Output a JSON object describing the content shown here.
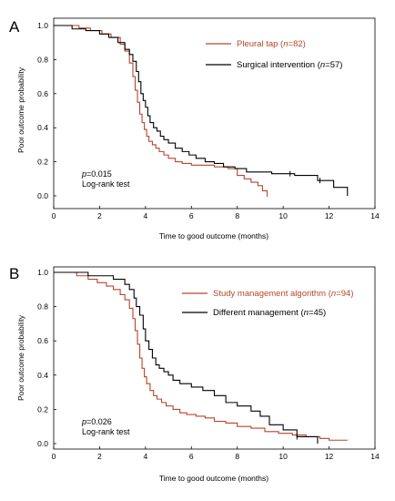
{
  "chart_data": [
    {
      "panel": "A",
      "type": "line",
      "step": true,
      "xlabel": "Time to good outcome (months)",
      "ylabel": "Poor outcome probability",
      "xlim": [
        0,
        14
      ],
      "ylim": [
        0,
        1
      ],
      "xticks": [
        "0",
        "2",
        "4",
        "6",
        "8",
        "10",
        "12",
        "14"
      ],
      "yticks": [
        "0.0",
        "0.2",
        "0.4",
        "0.6",
        "0.8",
        "1.0"
      ],
      "grid": false,
      "legend_position": "top-right",
      "stat_p": "0.015",
      "stat_test": "Log-rank test",
      "series": [
        {
          "label_main": "Pleural tap (",
          "label_n": "=82)",
          "color": "#b5462a",
          "x": [
            0,
            1.1,
            1.6,
            2.1,
            2.5,
            2.9,
            3.1,
            3.3,
            3.45,
            3.55,
            3.65,
            3.75,
            3.85,
            3.95,
            4.05,
            4.15,
            4.3,
            4.45,
            4.6,
            4.8,
            5.0,
            5.3,
            5.6,
            6.0,
            6.5,
            7.0,
            7.6,
            8.0,
            8.3,
            8.6,
            8.9,
            9.1,
            9.3
          ],
          "y": [
            1.0,
            0.985,
            0.97,
            0.95,
            0.93,
            0.89,
            0.85,
            0.78,
            0.7,
            0.62,
            0.55,
            0.48,
            0.43,
            0.39,
            0.35,
            0.32,
            0.3,
            0.28,
            0.26,
            0.24,
            0.22,
            0.2,
            0.19,
            0.18,
            0.18,
            0.17,
            0.16,
            0.12,
            0.1,
            0.08,
            0.06,
            0.03,
            0.01
          ],
          "censored_x": [
            9.3
          ]
        },
        {
          "label_main": "Surgical intervention (",
          "label_n": "=57)",
          "color": "#000000",
          "x": [
            0,
            0.8,
            1.4,
            2.0,
            2.4,
            2.8,
            3.1,
            3.3,
            3.45,
            3.6,
            3.7,
            3.8,
            3.9,
            4.0,
            4.1,
            4.2,
            4.35,
            4.5,
            4.65,
            4.8,
            5.0,
            5.3,
            5.6,
            5.9,
            6.2,
            6.6,
            7.0,
            7.4,
            7.9,
            8.4,
            9.5,
            10.5,
            11.5,
            12.2,
            12.8
          ],
          "y": [
            1.0,
            0.98,
            0.97,
            0.95,
            0.93,
            0.9,
            0.86,
            0.83,
            0.79,
            0.73,
            0.67,
            0.6,
            0.56,
            0.52,
            0.47,
            0.43,
            0.4,
            0.38,
            0.35,
            0.33,
            0.31,
            0.28,
            0.26,
            0.24,
            0.22,
            0.2,
            0.19,
            0.17,
            0.16,
            0.14,
            0.13,
            0.12,
            0.09,
            0.05,
            0.0
          ],
          "censored_x": [
            10.3,
            11.6
          ]
        }
      ]
    },
    {
      "panel": "B",
      "type": "line",
      "step": true,
      "xlabel": "Time to good outcome (months)",
      "ylabel": "Poor outcome probability",
      "xlim": [
        0,
        14
      ],
      "ylim": [
        0,
        1
      ],
      "xticks": [
        "0",
        "2",
        "4",
        "6",
        "8",
        "10",
        "12",
        "14"
      ],
      "yticks": [
        "0.0",
        "0.2",
        "0.4",
        "0.6",
        "0.8",
        "1.0"
      ],
      "grid": false,
      "legend_position": "top-right",
      "stat_p": "0.026",
      "stat_test": "Log-rank test",
      "series": [
        {
          "label_main": "Study management algorithm (",
          "label_n": "=94)",
          "color": "#b5462a",
          "x": [
            0,
            1.0,
            1.5,
            1.9,
            2.3,
            2.6,
            2.9,
            3.1,
            3.3,
            3.45,
            3.55,
            3.65,
            3.75,
            3.85,
            3.95,
            4.05,
            4.2,
            4.35,
            4.5,
            4.7,
            4.9,
            5.2,
            5.5,
            5.8,
            6.2,
            6.6,
            7.0,
            7.5,
            8.0,
            8.6,
            9.2,
            9.8,
            10.4,
            11.0,
            11.6,
            12.0,
            12.8
          ],
          "y": [
            1.0,
            0.98,
            0.96,
            0.94,
            0.92,
            0.9,
            0.87,
            0.84,
            0.79,
            0.73,
            0.66,
            0.58,
            0.5,
            0.44,
            0.39,
            0.35,
            0.31,
            0.28,
            0.26,
            0.24,
            0.22,
            0.2,
            0.18,
            0.17,
            0.16,
            0.15,
            0.13,
            0.12,
            0.1,
            0.09,
            0.07,
            0.06,
            0.05,
            0.04,
            0.03,
            0.02,
            0.02
          ],
          "censored_x": []
        },
        {
          "label_main": "Different management (",
          "label_n": "=45)",
          "color": "#000000",
          "x": [
            0,
            1.5,
            2.6,
            3.1,
            3.3,
            3.5,
            3.6,
            3.75,
            3.9,
            4.0,
            4.15,
            4.3,
            4.45,
            4.6,
            4.8,
            5.0,
            5.2,
            5.5,
            6.0,
            6.5,
            7.0,
            7.5,
            8.0,
            8.6,
            9.0,
            9.4,
            10.0,
            10.6,
            11.5
          ],
          "y": [
            1.0,
            0.98,
            0.96,
            0.93,
            0.9,
            0.85,
            0.8,
            0.75,
            0.67,
            0.6,
            0.55,
            0.5,
            0.46,
            0.44,
            0.42,
            0.4,
            0.37,
            0.35,
            0.33,
            0.31,
            0.28,
            0.24,
            0.22,
            0.19,
            0.16,
            0.11,
            0.08,
            0.04,
            0.0
          ],
          "censored_x": [
            10.6
          ]
        }
      ]
    }
  ]
}
